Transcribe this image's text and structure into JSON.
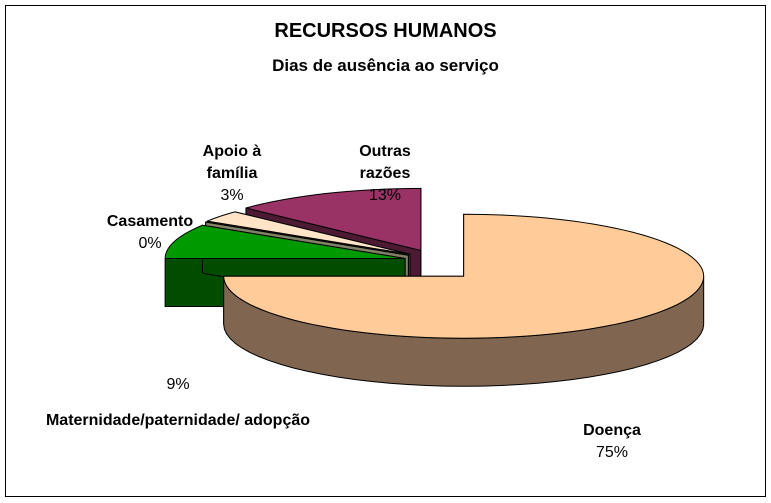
{
  "chart_data": {
    "type": "pie",
    "title": "RECURSOS HUMANOS",
    "subtitle": "Dias de ausência ao serviço",
    "categories": [
      "Doença",
      "Maternidade/paternidade/ adopção",
      "Casamento",
      "Apoio à família",
      "Outras razões"
    ],
    "values": [
      75,
      9,
      0,
      3,
      13
    ],
    "value_labels": [
      "75%",
      "9%",
      "0%",
      "3%",
      "13%"
    ],
    "colors": [
      "#ffcc99",
      "#009900",
      "#ffffcc",
      "#ffe4c8",
      "#993366"
    ],
    "side_colors": [
      "#806650",
      "#004d00",
      "#808066",
      "#806e60",
      "#4d1a33"
    ]
  }
}
